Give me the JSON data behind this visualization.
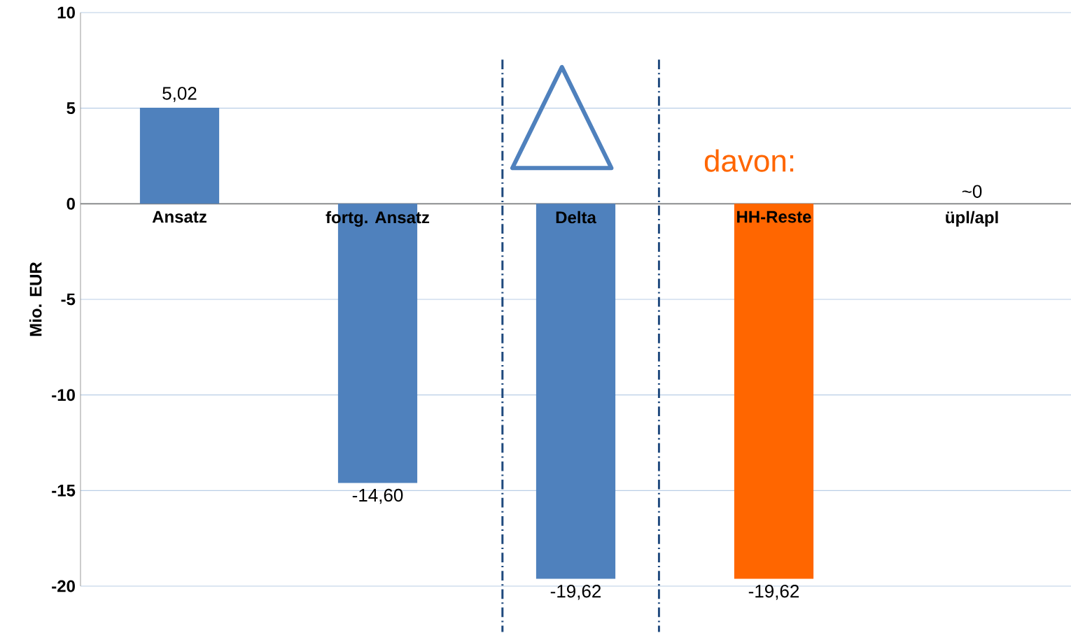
{
  "chart_data": {
    "type": "bar",
    "ylabel": "Mio. EUR",
    "categories": [
      "Ansatz",
      "fortg. Ansatz",
      "Delta",
      "HH-Reste",
      "üpl/apl"
    ],
    "values": [
      5.02,
      -14.6,
      -19.62,
      -19.62,
      0
    ],
    "colors": [
      "#4f81bd",
      "#4f81bd",
      "#4f81bd",
      "#ff6600",
      "#4f81bd"
    ],
    "value_labels": [
      "5,02",
      "-14,60",
      "-19,62",
      "-19,62",
      "~0"
    ],
    "ylim": [
      -20,
      10
    ],
    "yticks": [
      -20,
      -15,
      -10,
      -5,
      0,
      5,
      10
    ],
    "grid": "y",
    "annotations": [
      "davon:"
    ]
  }
}
